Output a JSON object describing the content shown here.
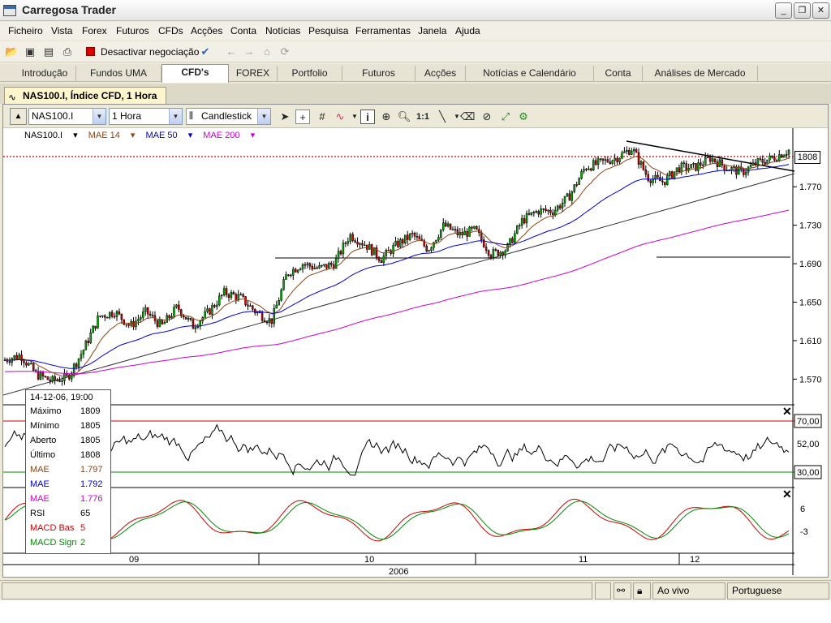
{
  "window": {
    "title": "Carregosa Trader",
    "menu": [
      "Ficheiro",
      "Vista",
      "Forex",
      "Futuros",
      "CFDs",
      "Acções",
      "Conta",
      "Notícias",
      "Pesquisa",
      "Ferramentas",
      "Janela",
      "Ajuda"
    ],
    "toolbar_trade_label": "Desactivar negociação",
    "nav_tabs": [
      "Introdução",
      "Fundos UMA",
      "CFD's",
      "FOREX",
      "Portfolio",
      "Futuros",
      "Acções",
      "Notícias e Calendário",
      "Conta",
      "Análises de Mercado"
    ],
    "active_tab": "CFD's",
    "doc_tab": "NAS100.I, Índice CFD, 1 Hora"
  },
  "chart_toolbar": {
    "symbol": "NAS100.I",
    "interval": "1 Hora",
    "chart_type": "Candlestick"
  },
  "indicators_legend": [
    {
      "label": "NAS100.I",
      "color": "#000000"
    },
    {
      "label": "MAE 14",
      "color": "#8b4513"
    },
    {
      "label": "MAE 50",
      "color": "#0000cc"
    },
    {
      "label": "MAE 200",
      "color": "#cc00cc"
    }
  ],
  "chart_data": {
    "type": "candlestick",
    "price_axis": {
      "ticks": [
        "1.770",
        "1.730",
        "1.690",
        "1.650",
        "1.610",
        "1.570"
      ],
      "ylim": [
        1545,
        1825
      ],
      "current": "1808",
      "horizontal_support": 1695
    },
    "rsi_axis": {
      "ticks": [
        "70,00",
        "52,00",
        "30,00"
      ]
    },
    "macd_axis": {
      "ticks": [
        "6",
        "-3"
      ]
    },
    "time_axis": {
      "ticks": [
        "09",
        "10",
        "11",
        "12"
      ],
      "year": "2006"
    },
    "close_path": [
      [
        0,
        1590
      ],
      [
        0.02,
        1595
      ],
      [
        0.04,
        1575
      ],
      [
        0.06,
        1568
      ],
      [
        0.08,
        1572
      ],
      [
        0.1,
        1600
      ],
      [
        0.12,
        1635
      ],
      [
        0.14,
        1640
      ],
      [
        0.16,
        1625
      ],
      [
        0.18,
        1640
      ],
      [
        0.2,
        1625
      ],
      [
        0.22,
        1645
      ],
      [
        0.24,
        1625
      ],
      [
        0.26,
        1640
      ],
      [
        0.28,
        1660
      ],
      [
        0.3,
        1655
      ],
      [
        0.32,
        1640
      ],
      [
        0.34,
        1630
      ],
      [
        0.36,
        1680
      ],
      [
        0.38,
        1690
      ],
      [
        0.4,
        1685
      ],
      [
        0.42,
        1690
      ],
      [
        0.44,
        1720
      ],
      [
        0.46,
        1710
      ],
      [
        0.48,
        1695
      ],
      [
        0.5,
        1710
      ],
      [
        0.52,
        1720
      ],
      [
        0.54,
        1705
      ],
      [
        0.56,
        1730
      ],
      [
        0.58,
        1720
      ],
      [
        0.6,
        1725
      ],
      [
        0.62,
        1700
      ],
      [
        0.64,
        1705
      ],
      [
        0.66,
        1735
      ],
      [
        0.68,
        1745
      ],
      [
        0.7,
        1745
      ],
      [
        0.72,
        1760
      ],
      [
        0.74,
        1790
      ],
      [
        0.76,
        1795
      ],
      [
        0.78,
        1800
      ],
      [
        0.8,
        1810
      ],
      [
        0.82,
        1780
      ],
      [
        0.84,
        1775
      ],
      [
        0.86,
        1790
      ],
      [
        0.88,
        1790
      ],
      [
        0.9,
        1800
      ],
      [
        0.92,
        1790
      ],
      [
        0.94,
        1785
      ],
      [
        0.96,
        1795
      ],
      [
        0.98,
        1800
      ],
      [
        1,
        1808
      ]
    ]
  },
  "infobox": {
    "datetime": "14-12-06, 19:00",
    "rows": [
      {
        "k": "Máximo",
        "v": "1809",
        "color": "#000000"
      },
      {
        "k": "Mínimo",
        "v": "1805",
        "color": "#000000"
      },
      {
        "k": "Aberto",
        "v": "1805",
        "color": "#000000"
      },
      {
        "k": "Último",
        "v": "1808",
        "color": "#000000"
      },
      {
        "k": "MAE",
        "v": "1.797",
        "color": "#8b4513"
      },
      {
        "k": "MAE",
        "v": "1.792",
        "color": "#0000cc"
      },
      {
        "k": "MAE",
        "v": "1.776",
        "color": "#cc00cc"
      },
      {
        "k": "RSI",
        "v": "65",
        "color": "#000000"
      },
      {
        "k": "MACD Bas",
        "v": "5",
        "color": "#cc0000"
      },
      {
        "k": "MACD Sign",
        "v": "2",
        "color": "#008800"
      }
    ]
  },
  "statusbar": {
    "mode": "Ao vivo",
    "language": "Portuguese"
  }
}
